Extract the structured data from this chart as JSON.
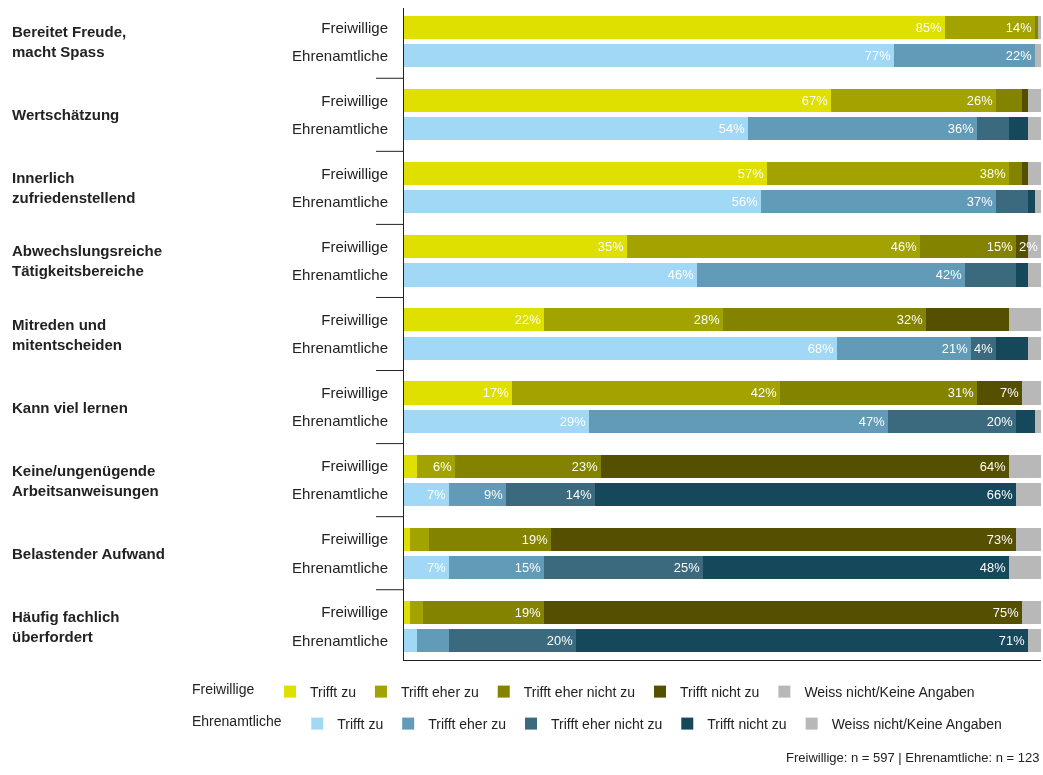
{
  "chart_data": {
    "type": "bar",
    "orientation": "horizontal",
    "stacked": true,
    "legend": "bottom",
    "xlim": [
      0,
      100
    ],
    "categories": [
      "Freiwillige",
      "Ehrenamtliche",
      "Freiwillige",
      "Ehrenamtliche",
      "Freiwillige",
      "Ehrenamtliche",
      "Freiwillige",
      "Ehrenamtliche",
      "Freiwillige",
      "Ehrenamtliche",
      "Freiwillige",
      "Ehrenamtliche",
      "Freiwillige",
      "Ehrenamtliche",
      "Freiwillige",
      "Ehrenamtliche",
      "Freiwillige",
      "Ehrenamtliche"
    ],
    "series": [
      {
        "name": "Trifft zu",
        "color": "#dfdf00",
        "values": [
          85,
          null,
          67,
          null,
          57,
          null,
          35,
          null,
          22,
          null,
          17,
          null,
          2,
          null,
          1,
          null,
          1,
          null
        ],
        "value_labels": [
          "85%",
          null,
          "67%",
          null,
          "57%",
          null,
          "35%",
          null,
          "22%",
          null,
          "17%",
          null,
          null,
          null,
          null,
          null,
          null,
          null
        ]
      },
      {
        "name": "Trifft eher zu",
        "color": "#a2a200",
        "values": [
          14,
          null,
          26,
          null,
          38,
          null,
          46,
          null,
          28,
          null,
          42,
          null,
          6,
          null,
          3,
          null,
          2,
          null
        ],
        "value_labels": [
          "14%",
          null,
          "26%",
          null,
          "38%",
          null,
          "46%",
          null,
          "28%",
          null,
          "42%",
          null,
          "6%",
          null,
          null,
          null,
          null,
          null
        ]
      },
      {
        "name": "Trifft eher nicht zu",
        "color": "#838300",
        "values": [
          0.5,
          null,
          4,
          null,
          2,
          null,
          15,
          null,
          32,
          null,
          31,
          null,
          23,
          null,
          19,
          null,
          19,
          null
        ],
        "value_labels": [
          null,
          null,
          null,
          null,
          null,
          null,
          "15%",
          null,
          "32%",
          null,
          "31%",
          null,
          "23%",
          null,
          "19%",
          null,
          "19%",
          null
        ]
      },
      {
        "name": "Trifft nicht zu",
        "color": "#555000",
        "values": [
          0,
          null,
          1,
          null,
          1,
          null,
          2,
          null,
          13,
          null,
          7,
          null,
          64,
          null,
          73,
          null,
          75,
          null
        ],
        "value_labels": [
          null,
          null,
          null,
          null,
          null,
          null,
          "2%",
          null,
          null,
          null,
          "7%",
          null,
          "64%",
          null,
          "73%",
          null,
          "75%",
          null
        ]
      },
      {
        "name": "Weiss nicht/Keine Angaben",
        "color": "#b8b8b8",
        "values": [
          0.5,
          null,
          2,
          null,
          2,
          null,
          2,
          null,
          5,
          null,
          3,
          null,
          5,
          null,
          4,
          null,
          3,
          null
        ],
        "value_labels": [
          null,
          null,
          null,
          null,
          null,
          null,
          null,
          null,
          null,
          null,
          null,
          null,
          null,
          null,
          null,
          null,
          null,
          null
        ]
      },
      {
        "name": "Trifft zu",
        "color": "#a0d8f5",
        "values": [
          null,
          77,
          null,
          54,
          null,
          56,
          null,
          46,
          null,
          68,
          null,
          29,
          null,
          7,
          null,
          7,
          null,
          2
        ],
        "value_labels": [
          null,
          "77%",
          null,
          "54%",
          null,
          "56%",
          null,
          "46%",
          null,
          "68%",
          null,
          "29%",
          null,
          "7%",
          null,
          "7%",
          null,
          null
        ]
      },
      {
        "name": "Trifft eher zu",
        "color": "#629bb7",
        "values": [
          null,
          22,
          null,
          36,
          null,
          37,
          null,
          42,
          null,
          21,
          null,
          47,
          null,
          9,
          null,
          15,
          null,
          5
        ],
        "value_labels": [
          null,
          "22%",
          null,
          "36%",
          null,
          "37%",
          null,
          "42%",
          null,
          "21%",
          null,
          "47%",
          null,
          "9%",
          null,
          "15%",
          null,
          null
        ]
      },
      {
        "name": "Trifft eher nicht zu",
        "color": "#3b6a7e",
        "values": [
          null,
          0,
          null,
          5,
          null,
          5,
          null,
          8,
          null,
          4,
          null,
          20,
          null,
          14,
          null,
          25,
          null,
          20
        ],
        "value_labels": [
          null,
          null,
          null,
          null,
          null,
          null,
          null,
          null,
          null,
          "4%",
          null,
          "20%",
          null,
          "14%",
          null,
          "25%",
          null,
          "20%"
        ]
      },
      {
        "name": "Trifft nicht zu",
        "color": "#15485a",
        "values": [
          null,
          0,
          null,
          3,
          null,
          1,
          null,
          2,
          null,
          5,
          null,
          3,
          null,
          66,
          null,
          48,
          null,
          71
        ],
        "value_labels": [
          null,
          null,
          null,
          null,
          null,
          null,
          null,
          null,
          null,
          null,
          null,
          null,
          null,
          "66%",
          null,
          "48%",
          null,
          "71%"
        ]
      },
      {
        "name": "Weiss nicht/Keine Angaben",
        "color": "#b8b8b8",
        "values": [
          null,
          1,
          null,
          2,
          null,
          1,
          null,
          2,
          null,
          2,
          null,
          1,
          null,
          4,
          null,
          5,
          null,
          2
        ],
        "value_labels": [
          null,
          null,
          null,
          null,
          null,
          null,
          null,
          null,
          null,
          null,
          null,
          null,
          null,
          null,
          null,
          null,
          null,
          null
        ]
      }
    ],
    "annotations": [
      "Bereitet Freude, macht Spass",
      "Wertschätzung",
      "Innerlich zufriedenstellend",
      "Abwechslungsreiche Tätigkeitsbereiche",
      "Mitreden und mitentscheiden",
      "Kann viel lernen",
      "Keine/ungenügende Arbeitsanweisungen",
      "Belastender Aufwand",
      "Häufig fachlich überfordert",
      "Freiwillige: n = 597 | Ehrenamtliche: n = 123"
    ]
  }
}
